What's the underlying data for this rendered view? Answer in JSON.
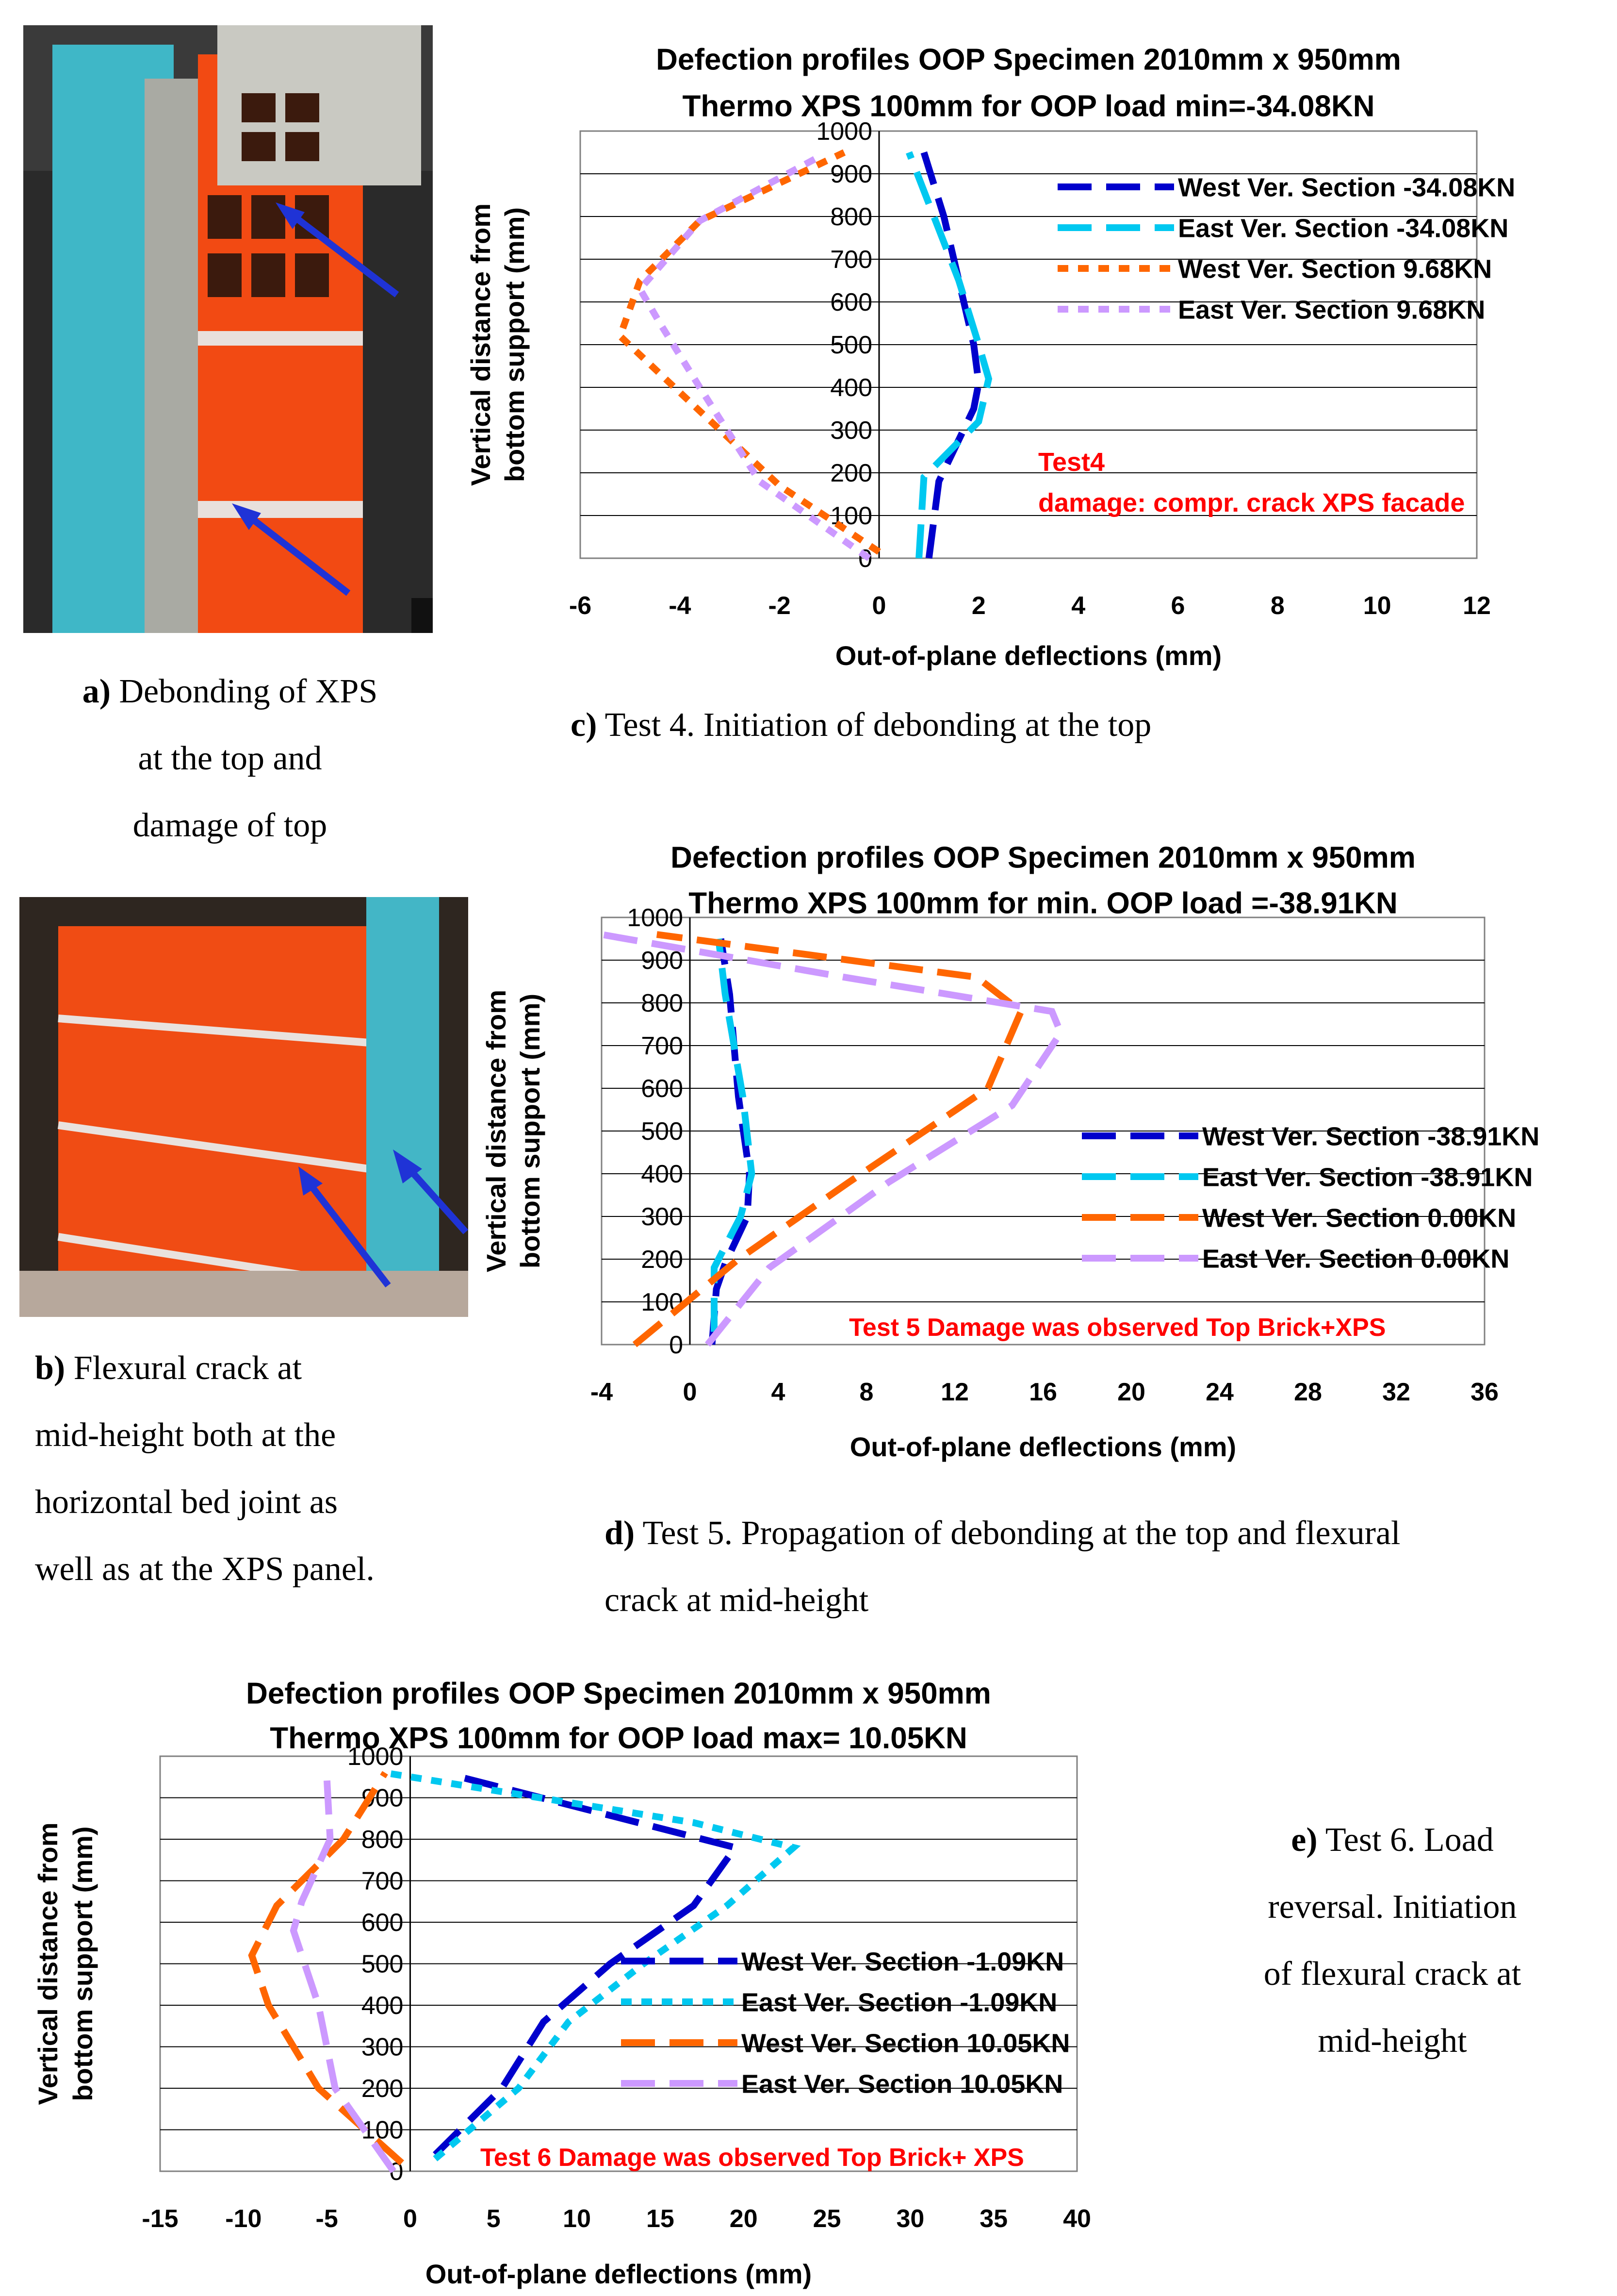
{
  "photos": {
    "a": {
      "name": "photo-a-debonding-top"
    },
    "b": {
      "name": "photo-b-flexural-crack"
    }
  },
  "captions": {
    "a": {
      "letter": "a)",
      "line1": " Debonding of XPS",
      "line2": "at the top and",
      "line3": "damage of top"
    },
    "b": {
      "letter": "b)",
      "line1": " Flexural crack at",
      "line2": "mid-height both at the",
      "line3": "horizontal bed joint as",
      "line4": "well as at the XPS panel."
    },
    "c": {
      "letter": "c)",
      "text": " Test 4. Initiation of debonding at the top"
    },
    "d": {
      "letter": "d)",
      "line1": " Test 5. Propagation of debonding at the top and flexural",
      "line2": "crack at mid-height"
    },
    "e": {
      "letter": "e)",
      "line1": " Test 6. Load",
      "line2": "reversal. Initiation",
      "line3": "of flexural crack at",
      "line4": "mid-height"
    }
  },
  "chart_data": [
    {
      "id": "c",
      "type": "line",
      "title": [
        "Defection profiles OOP Specimen 2010mm x 950mm",
        "Thermo XPS 100mm for OOP load min=-34.08KN"
      ],
      "xlabel": "Out-of-plane deflections (mm)",
      "ylabel": [
        "Vertical distance from",
        "bottom support (mm)"
      ],
      "xlim": [
        -6,
        12
      ],
      "ylim": [
        0,
        1000
      ],
      "xticks": [
        -6,
        -4,
        -2,
        0,
        2,
        4,
        6,
        8,
        10,
        12
      ],
      "yticks": [
        0,
        100,
        200,
        300,
        400,
        500,
        600,
        700,
        800,
        900,
        1000
      ],
      "annotation": [
        "Test4",
        "damage: compr. crack XPS facade"
      ],
      "series": [
        {
          "name": "West Ver. Section -34.08KN",
          "color": "#0000CC",
          "dash": "long",
          "points": [
            [
              1.0,
              0
            ],
            [
              1.2,
              180
            ],
            [
              1.9,
              350
            ],
            [
              2.0,
              410
            ],
            [
              1.9,
              500
            ],
            [
              1.6,
              650
            ],
            [
              1.3,
              800
            ],
            [
              0.9,
              950
            ]
          ]
        },
        {
          "name": "East Ver. Section -34.08KN",
          "color": "#00C8F0",
          "dash": "long",
          "points": [
            [
              0.8,
              0
            ],
            [
              0.9,
              190
            ],
            [
              2.0,
              320
            ],
            [
              2.2,
              420
            ],
            [
              2.0,
              500
            ],
            [
              1.6,
              650
            ],
            [
              1.1,
              800
            ],
            [
              0.6,
              950
            ]
          ]
        },
        {
          "name": "West Ver. Section 9.68KN",
          "color": "#FF6600",
          "dash": "dot",
          "points": [
            [
              0,
              15
            ],
            [
              -2.0,
              170
            ],
            [
              -4.2,
              410
            ],
            [
              -5.2,
              520
            ],
            [
              -4.8,
              650
            ],
            [
              -3.6,
              790
            ],
            [
              -0.7,
              950
            ]
          ]
        },
        {
          "name": "East Ver. Section 9.68KN",
          "color": "#CC99FF",
          "dash": "dot",
          "points": [
            [
              -0.2,
              0
            ],
            [
              -2.4,
              180
            ],
            [
              -3.6,
              400
            ],
            [
              -4.4,
              550
            ],
            [
              -4.8,
              630
            ],
            [
              -3.6,
              790
            ],
            [
              -1.2,
              940
            ]
          ]
        }
      ]
    },
    {
      "id": "d",
      "type": "line",
      "title": [
        "Defection profiles OOP Specimen 2010mm x 950mm",
        "Thermo XPS 100mm for min. OOP load =-38.91KN"
      ],
      "xlabel": "Out-of-plane deflections (mm)",
      "ylabel": [
        "Vertical distance from",
        "bottom support (mm)"
      ],
      "xlim": [
        -4,
        36
      ],
      "ylim": [
        0,
        1000
      ],
      "xticks": [
        -4,
        0,
        4,
        8,
        12,
        16,
        20,
        24,
        28,
        32,
        36
      ],
      "yticks": [
        0,
        100,
        200,
        300,
        400,
        500,
        600,
        700,
        800,
        900,
        1000
      ],
      "annotation": [
        "Test 5 Damage was observed Top Brick+XPS"
      ],
      "series": [
        {
          "name": "West Ver. Section -38.91KN",
          "color": "#0000CC",
          "dash": "long",
          "points": [
            [
              1.0,
              0
            ],
            [
              1.2,
              130
            ],
            [
              1.6,
              190
            ],
            [
              2.6,
              300
            ],
            [
              2.7,
              400
            ],
            [
              2.2,
              580
            ],
            [
              2.0,
              700
            ],
            [
              1.8,
              820
            ],
            [
              1.4,
              950
            ]
          ]
        },
        {
          "name": "East Ver. Section -38.91KN",
          "color": "#00C8F0",
          "dash": "long",
          "points": [
            [
              1.1,
              30
            ],
            [
              1.1,
              180
            ],
            [
              2.3,
              300
            ],
            [
              2.8,
              400
            ],
            [
              2.4,
              580
            ],
            [
              2.0,
              700
            ],
            [
              1.6,
              820
            ],
            [
              1.3,
              950
            ]
          ]
        },
        {
          "name": "West Ver. Section 0.00KN",
          "color": "#FF6600",
          "dash": "long",
          "points": [
            [
              -2.5,
              0
            ],
            [
              2.2,
              200
            ],
            [
              7.2,
              380
            ],
            [
              13.5,
              600
            ],
            [
              15.0,
              780
            ],
            [
              13.0,
              860
            ],
            [
              -1.5,
              960
            ]
          ]
        },
        {
          "name": "East Ver. Section 0.00KN",
          "color": "#CC99FF",
          "dash": "long",
          "points": [
            [
              0.8,
              0
            ],
            [
              3.6,
              180
            ],
            [
              9.0,
              380
            ],
            [
              14.6,
              560
            ],
            [
              16.8,
              730
            ],
            [
              16.4,
              780
            ],
            [
              7.0,
              860
            ],
            [
              -4.0,
              960
            ]
          ]
        }
      ]
    },
    {
      "id": "e",
      "type": "line",
      "title": [
        "Defection profiles OOP Specimen 2010mm x 950mm",
        "Thermo XPS 100mm for OOP load max= 10.05KN"
      ],
      "xlabel": "Out-of-plane deflections (mm)",
      "ylabel": [
        "Vertical distance from",
        "bottom support (mm)"
      ],
      "xlim": [
        -15,
        40
      ],
      "ylim": [
        0,
        1000
      ],
      "xticks": [
        -15,
        -10,
        -5,
        0,
        5,
        10,
        15,
        20,
        25,
        30,
        35,
        40
      ],
      "yticks": [
        0,
        100,
        200,
        300,
        400,
        500,
        600,
        700,
        800,
        900,
        1000
      ],
      "annotation": [
        "Test 6 Damage was observed Top Brick+ XPS"
      ],
      "series": [
        {
          "name": "West Ver. Section -1.09KN",
          "color": "#0000CC",
          "dash": "long",
          "points": [
            [
              1.5,
              40
            ],
            [
              5.5,
              200
            ],
            [
              8.0,
              360
            ],
            [
              12.0,
              500
            ],
            [
              17.0,
              640
            ],
            [
              19.5,
              780
            ],
            [
              3.0,
              950
            ]
          ]
        },
        {
          "name": "East Ver. Section -1.09KN",
          "color": "#00C8F0",
          "dash": "dot",
          "points": [
            [
              1.5,
              30
            ],
            [
              6.5,
              200
            ],
            [
              9.5,
              360
            ],
            [
              14.0,
              500
            ],
            [
              19.0,
              640
            ],
            [
              23.0,
              780
            ],
            [
              17.0,
              840
            ],
            [
              -1.5,
              960
            ]
          ]
        },
        {
          "name": "West Ver. Section 10.05KN",
          "color": "#FF6600",
          "dash": "long",
          "points": [
            [
              -0.5,
              20
            ],
            [
              -5.5,
              200
            ],
            [
              -8.5,
              400
            ],
            [
              -9.5,
              520
            ],
            [
              -8.0,
              640
            ],
            [
              -4.0,
              800
            ],
            [
              -1.5,
              960
            ]
          ]
        },
        {
          "name": "East Ver. Section 10.05KN",
          "color": "#CC99FF",
          "dash": "long",
          "points": [
            [
              -1.0,
              0
            ],
            [
              -4.5,
              200
            ],
            [
              -5.5,
              400
            ],
            [
              -7.0,
              580
            ],
            [
              -6.5,
              650
            ],
            [
              -4.8,
              800
            ],
            [
              -5.0,
              950
            ]
          ]
        }
      ]
    }
  ]
}
